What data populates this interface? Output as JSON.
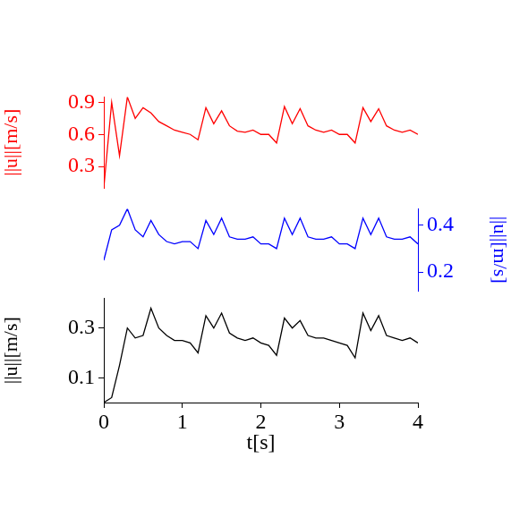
{
  "chart_data": [
    {
      "type": "line",
      "y_label": "||u||[m/s]",
      "xlim": [
        0,
        4
      ],
      "ylim": [
        0.1,
        0.95
      ],
      "yticks": [
        0.3,
        0.6,
        0.9
      ],
      "grid": false,
      "tick_labels": "y",
      "x": [
        0,
        0.1,
        0.2,
        0.3,
        0.4,
        0.5,
        0.6,
        0.7,
        0.8,
        0.9,
        1,
        1.1,
        1.2,
        1.3,
        1.4,
        1.5,
        1.6,
        1.7,
        1.8,
        1.9,
        2,
        2.1,
        2.2,
        2.3,
        2.4,
        2.5,
        2.6,
        2.7,
        2.8,
        2.9,
        3,
        3.1,
        3.2,
        3.3,
        3.4,
        3.5,
        3.6,
        3.7,
        3.8,
        3.9,
        4
      ],
      "series": [
        {
          "color": "#ff0000",
          "values": [
            0.1,
            0.9,
            0.4,
            0.95,
            0.75,
            0.85,
            0.8,
            0.72,
            0.68,
            0.64,
            0.62,
            0.6,
            0.55,
            0.85,
            0.7,
            0.82,
            0.68,
            0.63,
            0.62,
            0.64,
            0.6,
            0.6,
            0.52,
            0.86,
            0.7,
            0.84,
            0.68,
            0.64,
            0.62,
            0.64,
            0.6,
            0.6,
            0.52,
            0.85,
            0.72,
            0.84,
            0.68,
            0.64,
            0.62,
            0.64,
            0.6
          ]
        }
      ]
    },
    {
      "type": "line",
      "y_label": "||u||[m/s]",
      "y_axis_side": "right",
      "xlim": [
        0,
        4
      ],
      "ylim": [
        0.12,
        0.47
      ],
      "yticks": [
        0.2,
        0.4
      ],
      "grid": false,
      "tick_labels": "y",
      "x": [
        0,
        0.1,
        0.2,
        0.3,
        0.4,
        0.5,
        0.6,
        0.7,
        0.8,
        0.9,
        1,
        1.1,
        1.2,
        1.3,
        1.4,
        1.5,
        1.6,
        1.7,
        1.8,
        1.9,
        2,
        2.1,
        2.2,
        2.3,
        2.4,
        2.5,
        2.6,
        2.7,
        2.8,
        2.9,
        3,
        3.1,
        3.2,
        3.3,
        3.4,
        3.5,
        3.6,
        3.7,
        3.8,
        3.9,
        4
      ],
      "series": [
        {
          "color": "#0000ff",
          "values": [
            0.25,
            0.38,
            0.4,
            0.47,
            0.38,
            0.35,
            0.42,
            0.36,
            0.33,
            0.32,
            0.33,
            0.33,
            0.3,
            0.42,
            0.36,
            0.43,
            0.35,
            0.34,
            0.34,
            0.35,
            0.32,
            0.32,
            0.3,
            0.43,
            0.36,
            0.43,
            0.35,
            0.34,
            0.34,
            0.35,
            0.32,
            0.32,
            0.3,
            0.43,
            0.36,
            0.43,
            0.35,
            0.34,
            0.34,
            0.35,
            0.32
          ]
        }
      ]
    },
    {
      "type": "line",
      "x_label": "t[s]",
      "y_label": "||u||[m/s]",
      "xlim": [
        0,
        4
      ],
      "xticks": [
        0,
        1,
        2,
        3,
        4
      ],
      "ylim": [
        0,
        0.42
      ],
      "yticks": [
        0.1,
        0.3
      ],
      "grid": false,
      "x": [
        0,
        0.1,
        0.2,
        0.3,
        0.4,
        0.5,
        0.6,
        0.7,
        0.8,
        0.9,
        1,
        1.1,
        1.2,
        1.3,
        1.4,
        1.5,
        1.6,
        1.7,
        1.8,
        1.9,
        2,
        2.1,
        2.2,
        2.3,
        2.4,
        2.5,
        2.6,
        2.7,
        2.8,
        2.9,
        3,
        3.1,
        3.2,
        3.3,
        3.4,
        3.5,
        3.6,
        3.7,
        3.8,
        3.9,
        4
      ],
      "series": [
        {
          "color": "#000000",
          "values": [
            0,
            0.02,
            0.15,
            0.3,
            0.26,
            0.27,
            0.38,
            0.3,
            0.27,
            0.25,
            0.25,
            0.24,
            0.2,
            0.35,
            0.3,
            0.36,
            0.28,
            0.26,
            0.25,
            0.26,
            0.24,
            0.23,
            0.19,
            0.34,
            0.3,
            0.33,
            0.27,
            0.26,
            0.26,
            0.25,
            0.24,
            0.23,
            0.18,
            0.36,
            0.29,
            0.35,
            0.27,
            0.26,
            0.25,
            0.26,
            0.24
          ]
        }
      ]
    }
  ]
}
